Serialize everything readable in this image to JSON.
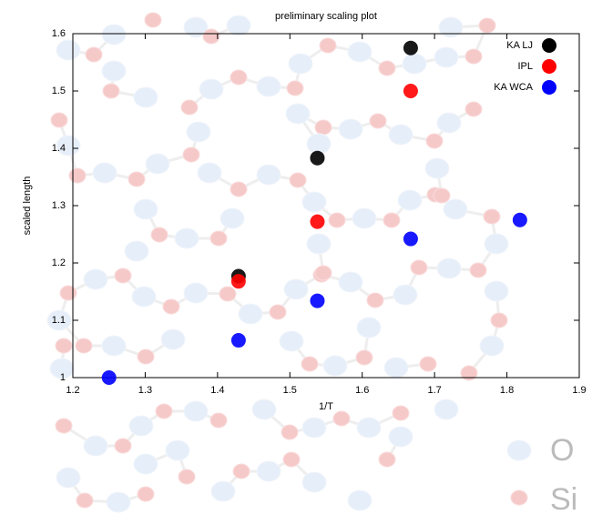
{
  "chart_data": {
    "type": "scatter",
    "title": "preliminary scaling plot",
    "x_label": "1/T",
    "y_label": "scaled length",
    "xlim": [
      1.2,
      1.9
    ],
    "xticks": [
      1.2,
      1.3,
      1.4,
      1.5,
      1.6,
      1.7,
      1.8,
      1.9
    ],
    "ylim": [
      1,
      1.6
    ],
    "yticks": [
      1,
      1.1,
      1.2,
      1.3,
      1.4,
      1.5,
      1.6
    ],
    "legend": "top-right",
    "series": [
      {
        "name": "KA LJ",
        "color": "#000000",
        "x": [
          1.667,
          1.538,
          1.429
        ],
        "values": [
          1.575,
          1.383,
          1.177
        ]
      },
      {
        "name": "IPL",
        "color": "#ff0000",
        "x": [
          1.667,
          1.538,
          1.429
        ],
        "values": [
          1.5,
          1.272,
          1.168
        ]
      },
      {
        "name": "KA WCA",
        "color": "#0000ff",
        "x": [
          1.818,
          1.667,
          1.538,
          1.429,
          1.25
        ],
        "values": [
          1.275,
          1.242,
          1.134,
          1.065,
          1.0
        ]
      }
    ],
    "background_labels": [
      "O",
      "Si"
    ]
  }
}
